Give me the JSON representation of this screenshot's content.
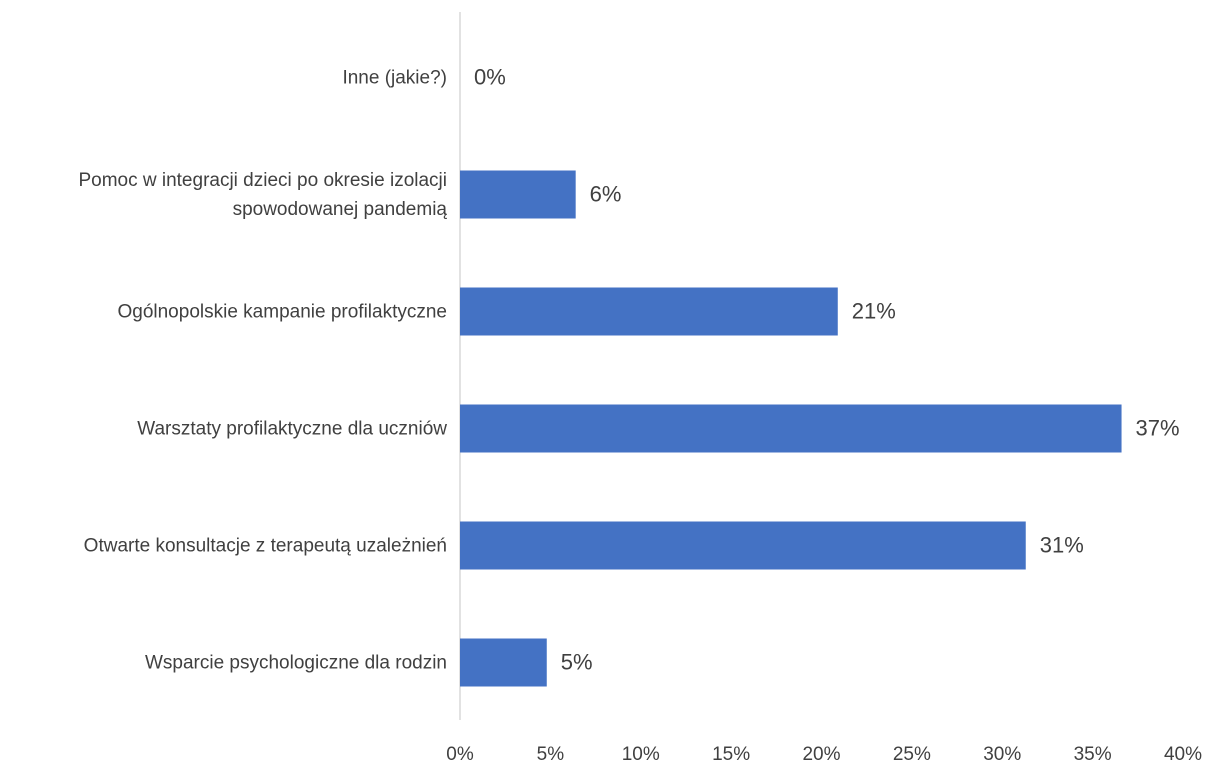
{
  "chart_data": {
    "type": "bar",
    "orientation": "horizontal",
    "categories": [
      "Inne (jakie?)",
      "Pomoc w integracji dzieci po okresie izolacji spowodowanej pandemią",
      "Ogólnopolskie kampanie profilaktyczne",
      "Warsztaty profilaktyczne dla uczniów",
      "Otwarte konsultacje z terapeutą uzależnień",
      "Wsparcie psychologiczne dla rodzin"
    ],
    "values": [
      0,
      6.4,
      20.9,
      36.6,
      31.3,
      4.8
    ],
    "value_labels": [
      "0%",
      "6%",
      "21%",
      "37%",
      "31%",
      "5%"
    ],
    "color": "#4472c4",
    "xlim": [
      0,
      40
    ],
    "xticks": [
      {
        "value": 0,
        "label": "0%"
      },
      {
        "value": 5,
        "label": "5%"
      },
      {
        "value": 10,
        "label": "10%"
      },
      {
        "value": 15,
        "label": "15%"
      },
      {
        "value": 20,
        "label": "20%"
      },
      {
        "value": 25,
        "label": "25%"
      },
      {
        "value": 30,
        "label": "30%"
      },
      {
        "value": 35,
        "label": "35%"
      },
      {
        "value": 40,
        "label": "40%"
      }
    ],
    "grid": false
  }
}
